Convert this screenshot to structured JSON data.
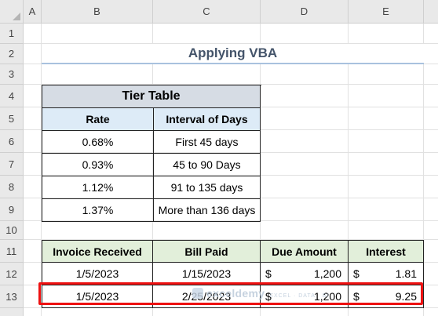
{
  "columns": [
    "A",
    "B",
    "C",
    "D",
    "E"
  ],
  "rows": [
    "1",
    "2",
    "3",
    "4",
    "5",
    "6",
    "7",
    "8",
    "9",
    "10",
    "11",
    "12",
    "13"
  ],
  "title": "Applying VBA",
  "tier_table": {
    "header": "Tier Table",
    "col_rate": "Rate",
    "col_interval": "Interval of Days",
    "rows": [
      {
        "rate": "0.68%",
        "interval": "First 45 days"
      },
      {
        "rate": "0.93%",
        "interval": "45 to 90 Days"
      },
      {
        "rate": "1.12%",
        "interval": "91 to 135 days"
      },
      {
        "rate": "1.37%",
        "interval": "More than 136 days"
      }
    ]
  },
  "invoice_table": {
    "headers": [
      "Invoice Received",
      "Bill Paid",
      "Due Amount",
      "Interest"
    ],
    "rows": [
      {
        "received": "1/5/2023",
        "paid": "1/15/2023",
        "due_cur": "$",
        "due": "1,200",
        "int_cur": "$",
        "interest": "1.81"
      },
      {
        "received": "1/5/2023",
        "paid": "2/25/2023",
        "due_cur": "$",
        "due": "1,200",
        "int_cur": "$",
        "interest": "9.25"
      }
    ]
  },
  "watermark": {
    "name": "exceldemy",
    "tagline": "EXCEL · DATA · BI"
  },
  "colors": {
    "title": "#44546a",
    "tier_header": "#d6dce4",
    "tier_colhead": "#ddebf7",
    "invoice_header": "#e2efda",
    "highlight": "#ee1111"
  }
}
